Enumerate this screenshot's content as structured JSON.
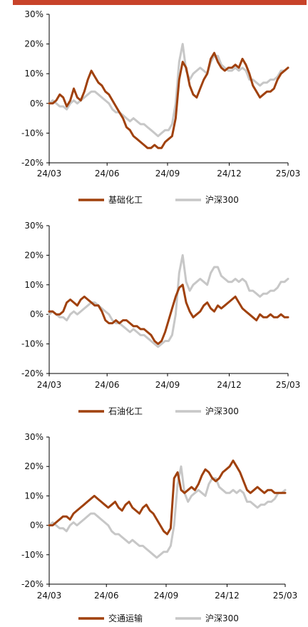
{
  "colors": {
    "topbar": "#c8432a",
    "sector": "#a0410d",
    "index": "#c7c7c7"
  },
  "chart_data": [
    {
      "type": "line",
      "x_ticks": [
        "24/03",
        "24/06",
        "24/09",
        "24/12",
        "25/03"
      ],
      "y_ticks": [
        "30%",
        "20%",
        "10%",
        "0%",
        "-10%",
        "-20%"
      ],
      "ylim": [
        -20,
        30
      ],
      "grid": false,
      "legend_position": "bottom",
      "series": [
        {
          "name": "基础化工",
          "color": "#a0410d",
          "values": [
            0,
            0,
            1,
            3,
            2,
            -1,
            1,
            5,
            2,
            1,
            4,
            8,
            11,
            9,
            7,
            6,
            4,
            3,
            1,
            -1,
            -3,
            -5,
            -8,
            -9,
            -11,
            -12,
            -13,
            -14,
            -15,
            -15,
            -14,
            -15,
            -15,
            -13,
            -12,
            -11,
            -5,
            8,
            14,
            12,
            6,
            3,
            2,
            5,
            8,
            10,
            15,
            17,
            14,
            12,
            11,
            12,
            12,
            13,
            12,
            15,
            13,
            10,
            6,
            4,
            2,
            3,
            4,
            4,
            5,
            8,
            10,
            11,
            12
          ]
        },
        {
          "name": "沪深300",
          "color": "#c7c7c7",
          "values": [
            0,
            1,
            0,
            -1,
            -1,
            -2,
            0,
            1,
            0,
            1,
            2,
            3,
            4,
            4,
            3,
            2,
            1,
            0,
            -2,
            -3,
            -3,
            -4,
            -5,
            -6,
            -5,
            -6,
            -7,
            -7,
            -8,
            -9,
            -10,
            -11,
            -10,
            -9,
            -9,
            -7,
            0,
            14,
            20,
            11,
            8,
            10,
            11,
            12,
            11,
            10,
            14,
            16,
            16,
            13,
            12,
            11,
            11,
            12,
            11,
            12,
            11,
            8,
            8,
            7,
            6,
            7,
            7,
            8,
            8,
            9,
            11,
            11,
            12
          ]
        }
      ]
    },
    {
      "type": "line",
      "x_ticks": [
        "24/03",
        "24/06",
        "24/09",
        "24/12",
        "25/03"
      ],
      "y_ticks": [
        "30%",
        "20%",
        "10%",
        "0%",
        "-10%",
        "-20%"
      ],
      "ylim": [
        -20,
        30
      ],
      "grid": false,
      "legend_position": "bottom",
      "series": [
        {
          "name": "石油化工",
          "color": "#a0410d",
          "values": [
            1,
            1,
            0,
            0,
            1,
            4,
            5,
            4,
            3,
            5,
            6,
            5,
            4,
            3,
            3,
            1,
            -2,
            -3,
            -3,
            -2,
            -3,
            -2,
            -2,
            -3,
            -4,
            -4,
            -5,
            -5,
            -6,
            -7,
            -9,
            -10,
            -9,
            -6,
            -2,
            2,
            6,
            9,
            10,
            4,
            1,
            -1,
            0,
            1,
            3,
            4,
            2,
            1,
            3,
            2,
            3,
            4,
            5,
            6,
            4,
            2,
            1,
            0,
            -1,
            -2,
            0,
            -1,
            -1,
            0,
            -1,
            -1,
            0,
            -1,
            -1
          ]
        },
        {
          "name": "沪深300",
          "color": "#c7c7c7",
          "values": [
            0,
            1,
            0,
            -1,
            -1,
            -2,
            0,
            1,
            0,
            1,
            2,
            3,
            4,
            4,
            3,
            2,
            1,
            0,
            -2,
            -3,
            -3,
            -4,
            -5,
            -6,
            -5,
            -6,
            -7,
            -7,
            -8,
            -9,
            -10,
            -11,
            -10,
            -9,
            -9,
            -7,
            0,
            14,
            20,
            11,
            8,
            10,
            11,
            12,
            11,
            10,
            14,
            16,
            16,
            13,
            12,
            11,
            11,
            12,
            11,
            12,
            11,
            8,
            8,
            7,
            6,
            7,
            7,
            8,
            8,
            9,
            11,
            11,
            12
          ]
        }
      ]
    },
    {
      "type": "line",
      "x_ticks": [
        "24/03",
        "24/06",
        "24/09",
        "24/12",
        "25/03"
      ],
      "y_ticks": [
        "30%",
        "20%",
        "10%",
        "0%",
        "-10%",
        "-20%"
      ],
      "ylim": [
        -20,
        30
      ],
      "grid": false,
      "legend_position": "bottom",
      "series": [
        {
          "name": "交通运输",
          "color": "#a0410d",
          "values": [
            0,
            0,
            1,
            2,
            3,
            3,
            2,
            4,
            5,
            6,
            7,
            8,
            9,
            10,
            9,
            8,
            7,
            6,
            7,
            8,
            6,
            5,
            7,
            8,
            6,
            5,
            4,
            6,
            7,
            5,
            4,
            2,
            0,
            -2,
            -3,
            -1,
            16,
            18,
            12,
            11,
            12,
            13,
            12,
            14,
            17,
            19,
            18,
            16,
            15,
            16,
            18,
            19,
            20,
            22,
            20,
            18,
            15,
            12,
            11,
            12,
            13,
            12,
            11,
            12,
            12,
            11,
            11,
            11,
            11
          ]
        },
        {
          "name": "沪深300",
          "color": "#c7c7c7",
          "values": [
            0,
            1,
            0,
            -1,
            -1,
            -2,
            0,
            1,
            0,
            1,
            2,
            3,
            4,
            4,
            3,
            2,
            1,
            0,
            -2,
            -3,
            -3,
            -4,
            -5,
            -6,
            -5,
            -6,
            -7,
            -7,
            -8,
            -9,
            -10,
            -11,
            -10,
            -9,
            -9,
            -7,
            0,
            14,
            20,
            11,
            8,
            10,
            11,
            12,
            11,
            10,
            14,
            16,
            16,
            13,
            12,
            11,
            11,
            12,
            11,
            12,
            11,
            8,
            8,
            7,
            6,
            7,
            7,
            8,
            8,
            9,
            11,
            11,
            12
          ]
        }
      ]
    }
  ]
}
